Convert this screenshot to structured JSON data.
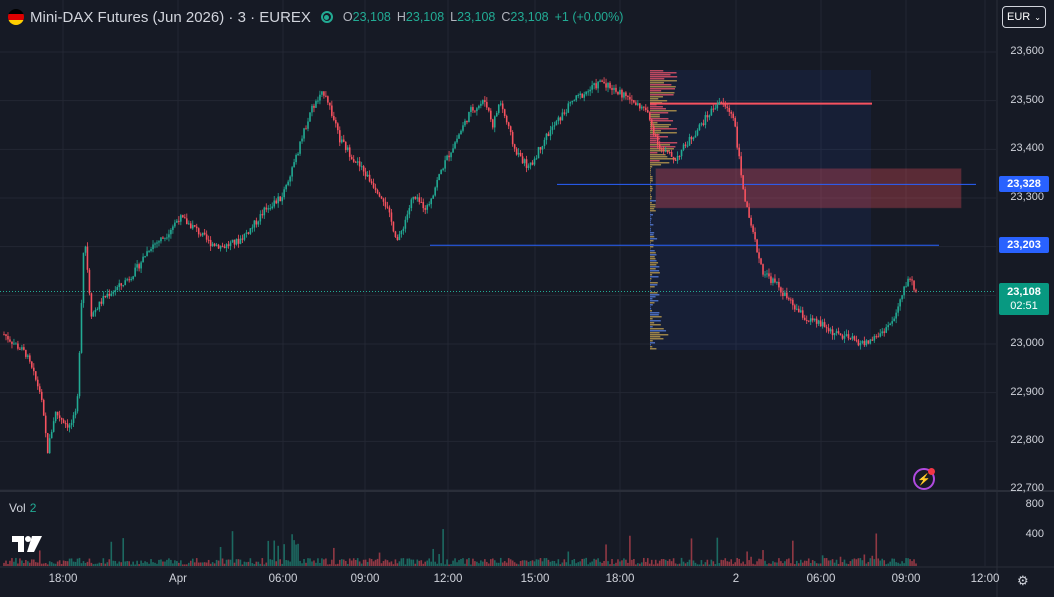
{
  "header": {
    "symbol": "Mini-DAX Futures (Jun 2026) · 3 · EUREX",
    "ohlc": [
      {
        "k": "O",
        "v": "23,108"
      },
      {
        "k": "H",
        "v": "23,108"
      },
      {
        "k": "L",
        "v": "23,108"
      },
      {
        "k": "C",
        "v": "23,108"
      }
    ],
    "change": "+1 (+0.00%)"
  },
  "currency": "EUR",
  "volume_label": "Vol",
  "volume_value": "2",
  "price_axis": [
    "23,600",
    "23,500",
    "23,400",
    "23,300",
    "23,000",
    "22,900",
    "22,800",
    "22,700"
  ],
  "volume_axis": [
    "800",
    "400"
  ],
  "price_tags": {
    "level1": "23,328",
    "level2": "23,203",
    "last": "23,108",
    "countdown": "02:51"
  },
  "time_axis": [
    "18:00",
    "Apr",
    "06:00",
    "09:00",
    "12:00",
    "15:00",
    "18:00",
    "2",
    "06:00",
    "09:00",
    "12:00"
  ],
  "colors": {
    "up": "#22ab94",
    "down": "#f7525f",
    "line": "#2962ff",
    "zone": "#f7525f"
  },
  "chart_data": {
    "type": "candlestick",
    "y_range": [
      22700,
      23620
    ],
    "horizontal_levels": [
      23328,
      23203
    ],
    "resistance_level": 23494,
    "zone": [
      23280,
      23360
    ],
    "last_price": 23108,
    "path": [
      [
        0,
        23020
      ],
      [
        3,
        22980
      ],
      [
        5,
        22900
      ],
      [
        6,
        22780
      ],
      [
        7,
        22860
      ],
      [
        9,
        22830
      ],
      [
        10,
        22860
      ],
      [
        11,
        23230
      ],
      [
        12,
        23060
      ],
      [
        14,
        23100
      ],
      [
        16,
        23120
      ],
      [
        18,
        23150
      ],
      [
        20,
        23200
      ],
      [
        22,
        23220
      ],
      [
        24,
        23260
      ],
      [
        26,
        23240
      ],
      [
        28,
        23210
      ],
      [
        30,
        23200
      ],
      [
        32,
        23210
      ],
      [
        34,
        23240
      ],
      [
        36,
        23280
      ],
      [
        38,
        23300
      ],
      [
        40,
        23380
      ],
      [
        42,
        23480
      ],
      [
        44,
        23520
      ],
      [
        46,
        23420
      ],
      [
        48,
        23380
      ],
      [
        50,
        23340
      ],
      [
        52,
        23300
      ],
      [
        54,
        23210
      ],
      [
        56,
        23300
      ],
      [
        58,
        23280
      ],
      [
        60,
        23360
      ],
      [
        62,
        23420
      ],
      [
        64,
        23480
      ],
      [
        66,
        23500
      ],
      [
        67,
        23450
      ],
      [
        68,
        23500
      ],
      [
        70,
        23400
      ],
      [
        72,
        23360
      ],
      [
        74,
        23420
      ],
      [
        76,
        23460
      ],
      [
        78,
        23500
      ],
      [
        80,
        23520
      ],
      [
        82,
        23540
      ],
      [
        84,
        23520
      ],
      [
        86,
        23500
      ],
      [
        88,
        23480
      ],
      [
        90,
        23400
      ],
      [
        92,
        23380
      ],
      [
        94,
        23420
      ],
      [
        96,
        23460
      ],
      [
        98,
        23500
      ],
      [
        100,
        23470
      ],
      [
        101,
        23350
      ],
      [
        102,
        23260
      ],
      [
        104,
        23150
      ],
      [
        106,
        23120
      ],
      [
        108,
        23080
      ],
      [
        110,
        23050
      ],
      [
        112,
        23040
      ],
      [
        114,
        23020
      ],
      [
        116,
        23010
      ],
      [
        118,
        23000
      ],
      [
        120,
        23020
      ],
      [
        122,
        23050
      ],
      [
        124,
        23140
      ],
      [
        125,
        23108
      ]
    ]
  }
}
